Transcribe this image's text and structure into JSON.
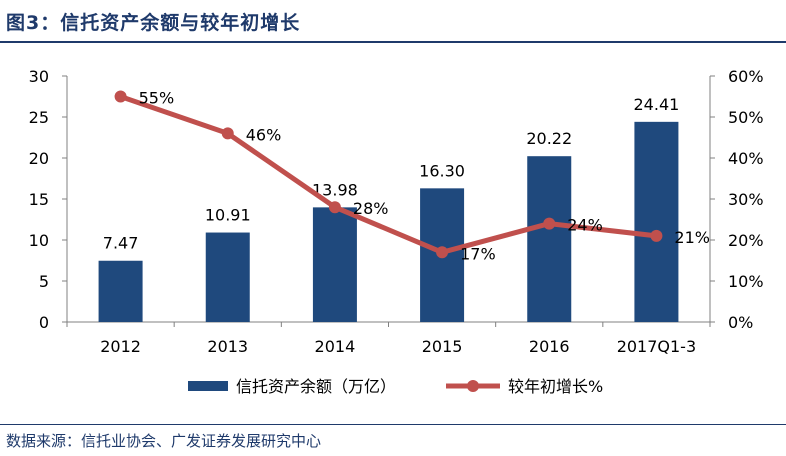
{
  "figure_title": "图3：信托资产余额与较年初增长",
  "source_note": "数据来源：信托业协会、广发证券发展研究中心",
  "colors": {
    "bar": "#1f497d",
    "line": "#c0504d",
    "title": "#1f3a6b",
    "axis": "#808080",
    "text": "#000000"
  },
  "chart_data": {
    "type": "bar+line",
    "title": "信托资产余额与较年初增长",
    "categories": [
      "2012",
      "2013",
      "2014",
      "2015",
      "2016",
      "2017Q1-3"
    ],
    "series": [
      {
        "name": "信托资产余额（万亿）",
        "type": "bar",
        "axis": "left",
        "values": [
          7.47,
          10.91,
          13.98,
          16.3,
          20.22,
          24.41
        ],
        "labels": [
          "7.47",
          "10.91",
          "13.98",
          "16.30",
          "20.22",
          "24.41"
        ]
      },
      {
        "name": "较年初增长%",
        "type": "line",
        "axis": "right",
        "values": [
          55,
          46,
          28,
          17,
          24,
          21
        ],
        "labels": [
          "55%",
          "46%",
          "28%",
          "17%",
          "24%",
          "21%"
        ]
      }
    ],
    "y_left": {
      "min": 0,
      "max": 30,
      "ticks": [
        "0",
        "5",
        "10",
        "15",
        "20",
        "25",
        "30"
      ]
    },
    "y_right": {
      "min": 0,
      "max": 60,
      "ticks": [
        "0%",
        "10%",
        "20%",
        "30%",
        "40%",
        "50%",
        "60%"
      ]
    },
    "legend_position": "bottom"
  }
}
